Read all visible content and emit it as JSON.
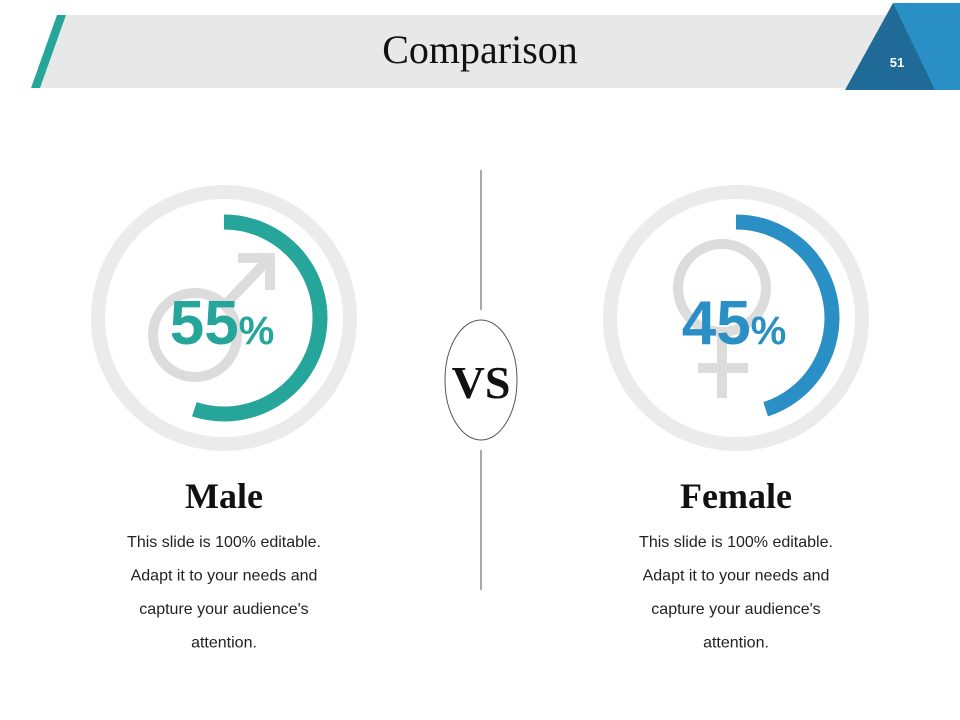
{
  "header": {
    "title": "Comparison",
    "page_number": "51"
  },
  "center_label": "VS",
  "panels": [
    {
      "value": 55,
      "unit": "%",
      "label": "Male",
      "color": "#26a69a",
      "description": [
        "This slide is 100% editable.",
        "Adapt it to your needs and",
        "capture your audience's",
        "attention."
      ]
    },
    {
      "value": 45,
      "unit": "%",
      "label": "Female",
      "color": "#2a8fc4",
      "description": [
        "This slide is 100% editable.",
        "Adapt it to your needs and",
        "capture your audience's",
        "attention."
      ]
    }
  ]
}
